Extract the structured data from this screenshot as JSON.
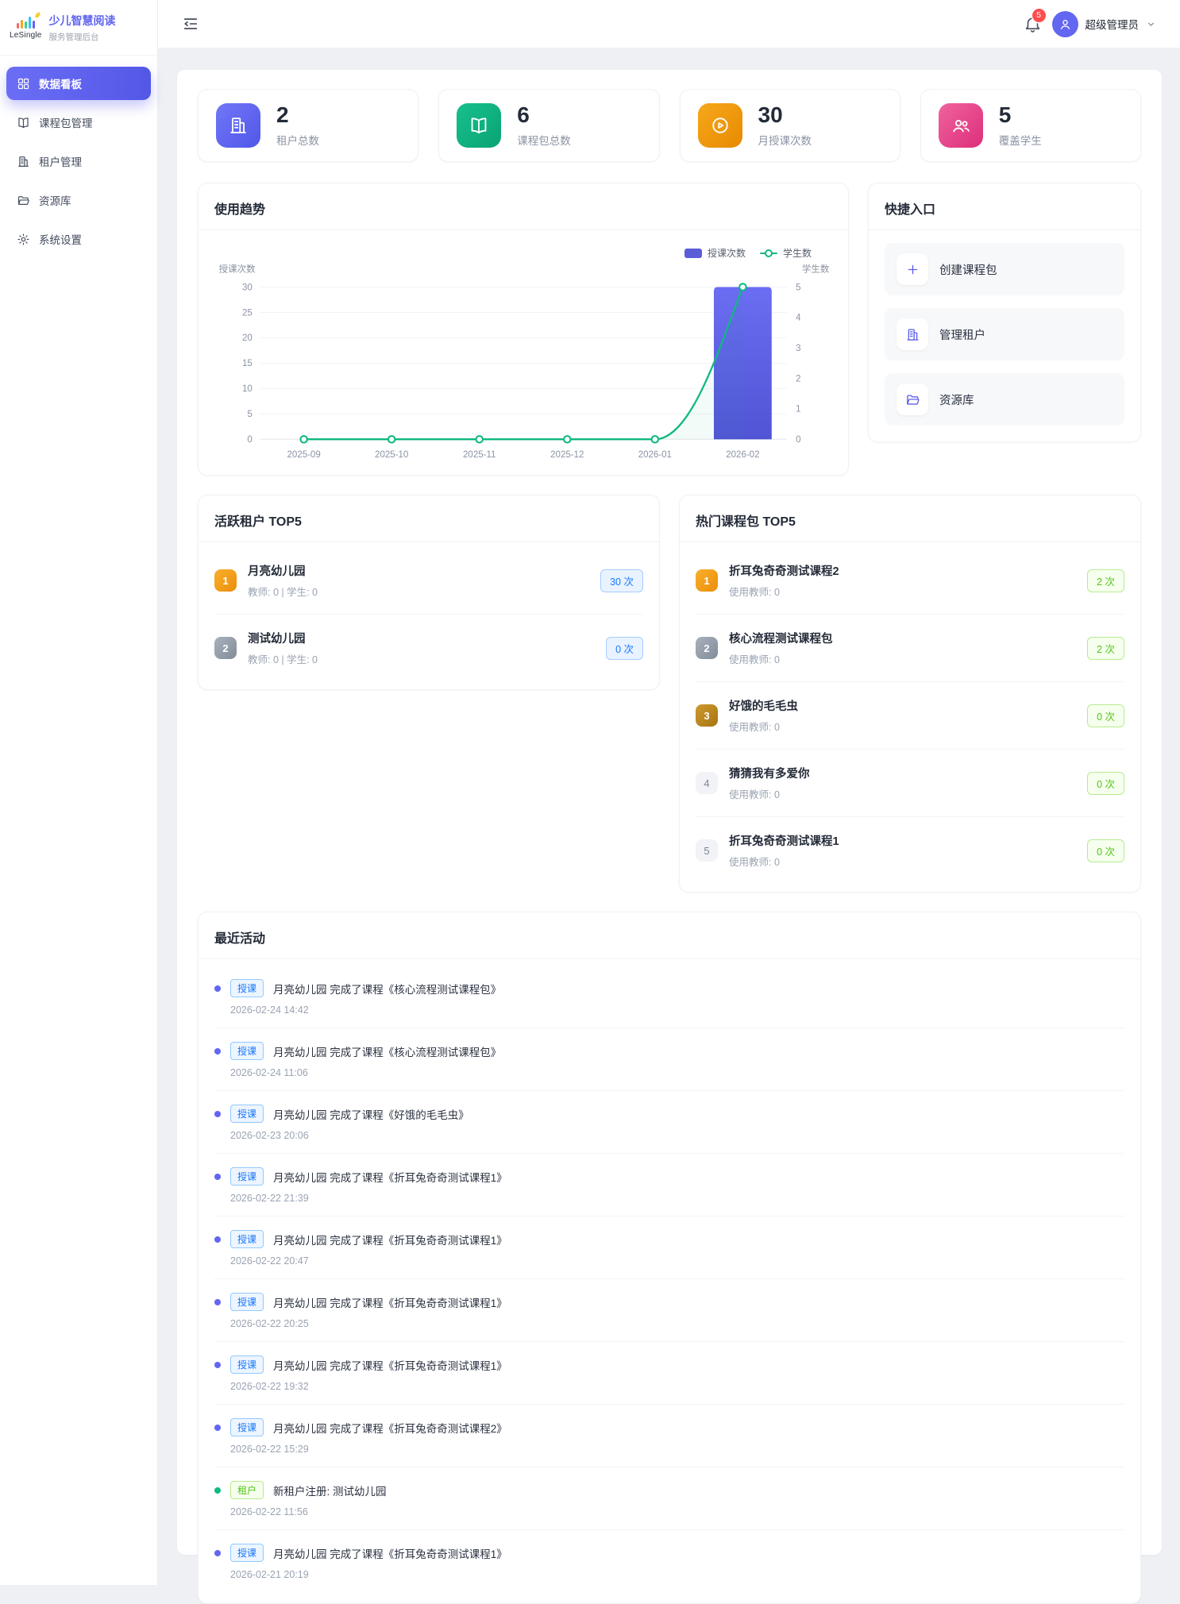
{
  "sidebar": {
    "logo_text": "LeSingle",
    "title": "少儿智慧阅读",
    "subtitle": "服务管理后台",
    "items": [
      {
        "key": "dashboard",
        "label": "数据看板",
        "icon": "dashboard-grid-icon",
        "active": true
      },
      {
        "key": "course-package-management",
        "label": "课程包管理",
        "icon": "book-icon",
        "active": false
      },
      {
        "key": "tenant-management",
        "label": "租户管理",
        "icon": "building-icon",
        "active": false
      },
      {
        "key": "resource-library",
        "label": "资源库",
        "icon": "folder-icon",
        "active": false
      },
      {
        "key": "system-settings",
        "label": "系统设置",
        "icon": "gear-icon",
        "active": false
      }
    ]
  },
  "header": {
    "notification_count": "5",
    "user_name": "超级管理员"
  },
  "stats": [
    {
      "value": "2",
      "label": "租户总数",
      "icon": "building-icon",
      "gradient": [
        "#7177f7",
        "#5156e8"
      ]
    },
    {
      "value": "6",
      "label": "课程包总数",
      "icon": "book-icon",
      "gradient": [
        "#17c08f",
        "#0aa372"
      ]
    },
    {
      "value": "30",
      "label": "月授课次数",
      "icon": "play-circle-icon",
      "gradient": [
        "#f6a81c",
        "#e88a00"
      ]
    },
    {
      "value": "5",
      "label": "覆盖学生",
      "icon": "users-icon",
      "gradient": [
        "#f0639c",
        "#dc2f7c"
      ]
    }
  ],
  "trend": {
    "title": "使用趋势"
  },
  "chart_data": {
    "type": "bar+line",
    "categories": [
      "2025-09",
      "2025-10",
      "2025-11",
      "2025-12",
      "2026-01",
      "2026-02"
    ],
    "series": [
      {
        "name": "授课次数",
        "type": "bar",
        "axis": "left",
        "color": "#5b5dd8",
        "values": [
          0,
          0,
          0,
          0,
          0,
          30
        ]
      },
      {
        "name": "学生数",
        "type": "line",
        "axis": "right",
        "color": "#10b981",
        "values": [
          0,
          0,
          0,
          0,
          0,
          5
        ]
      }
    ],
    "left_axis": {
      "title": "授课次数",
      "min": 0,
      "max": 30,
      "ticks": [
        0,
        5,
        10,
        15,
        20,
        25,
        30
      ]
    },
    "right_axis": {
      "title": "学生数",
      "min": 0,
      "max": 5,
      "ticks": [
        0,
        1,
        2,
        3,
        4,
        5
      ]
    },
    "legend": [
      "授课次数",
      "学生数"
    ],
    "legend_position": "top-right",
    "grid": true
  },
  "quick_entry": {
    "title": "快捷入口",
    "items": [
      {
        "key": "create-course-package",
        "label": "创建课程包",
        "icon": "plus-icon"
      },
      {
        "key": "manage-tenants",
        "label": "管理租户",
        "icon": "building-icon"
      },
      {
        "key": "resource-library",
        "label": "资源库",
        "icon": "folder-icon"
      }
    ]
  },
  "active_tenants": {
    "title": "活跃租户 TOP5",
    "count_style": "blue",
    "items": [
      {
        "rank": "1",
        "name": "月亮幼儿园",
        "meta": "教师: 0 | 学生: 0",
        "count": "30 次"
      },
      {
        "rank": "2",
        "name": "测试幼儿园",
        "meta": "教师: 0 | 学生: 0",
        "count": "0 次"
      }
    ]
  },
  "hot_packages": {
    "title": "热门课程包 TOP5",
    "count_style": "green",
    "items": [
      {
        "rank": "1",
        "name": "折耳兔奇奇测试课程2",
        "meta": "使用教师: 0",
        "count": "2 次"
      },
      {
        "rank": "2",
        "name": "核心流程测试课程包",
        "meta": "使用教师: 0",
        "count": "2 次"
      },
      {
        "rank": "3",
        "name": "好饿的毛毛虫",
        "meta": "使用教师: 0",
        "count": "0 次"
      },
      {
        "rank": "4",
        "name": "猜猜我有多爱你",
        "meta": "使用教师: 0",
        "count": "0 次"
      },
      {
        "rank": "5",
        "name": "折耳兔奇奇测试课程1",
        "meta": "使用教师: 0",
        "count": "0 次"
      }
    ]
  },
  "activities": {
    "title": "最近活动",
    "items": [
      {
        "tag": "授课",
        "tag_color": "blue",
        "text": "月亮幼儿园 完成了课程《核心流程测试课程包》",
        "time": "2026-02-24 14:42"
      },
      {
        "tag": "授课",
        "tag_color": "blue",
        "text": "月亮幼儿园 完成了课程《核心流程测试课程包》",
        "time": "2026-02-24 11:06"
      },
      {
        "tag": "授课",
        "tag_color": "blue",
        "text": "月亮幼儿园 完成了课程《好饿的毛毛虫》",
        "time": "2026-02-23 20:06"
      },
      {
        "tag": "授课",
        "tag_color": "blue",
        "text": "月亮幼儿园 完成了课程《折耳兔奇奇测试课程1》",
        "time": "2026-02-22 21:39"
      },
      {
        "tag": "授课",
        "tag_color": "blue",
        "text": "月亮幼儿园 完成了课程《折耳兔奇奇测试课程1》",
        "time": "2026-02-22 20:47"
      },
      {
        "tag": "授课",
        "tag_color": "blue",
        "text": "月亮幼儿园 完成了课程《折耳兔奇奇测试课程1》",
        "time": "2026-02-22 20:25"
      },
      {
        "tag": "授课",
        "tag_color": "blue",
        "text": "月亮幼儿园 完成了课程《折耳兔奇奇测试课程1》",
        "time": "2026-02-22 19:32"
      },
      {
        "tag": "授课",
        "tag_color": "blue",
        "text": "月亮幼儿园 完成了课程《折耳兔奇奇测试课程2》",
        "time": "2026-02-22 15:29"
      },
      {
        "tag": "租户",
        "tag_color": "green",
        "text": "新租户注册: 测试幼儿园",
        "time": "2026-02-22 11:56"
      },
      {
        "tag": "授课",
        "tag_color": "blue",
        "text": "月亮幼儿园 完成了课程《折耳兔奇奇测试课程1》",
        "time": "2026-02-21 20:19"
      }
    ]
  },
  "colors": {
    "primary": "#5d5fe8",
    "bar": "#5b5dd8",
    "line": "#10b981",
    "notification_badge": "#ff4d4f"
  }
}
